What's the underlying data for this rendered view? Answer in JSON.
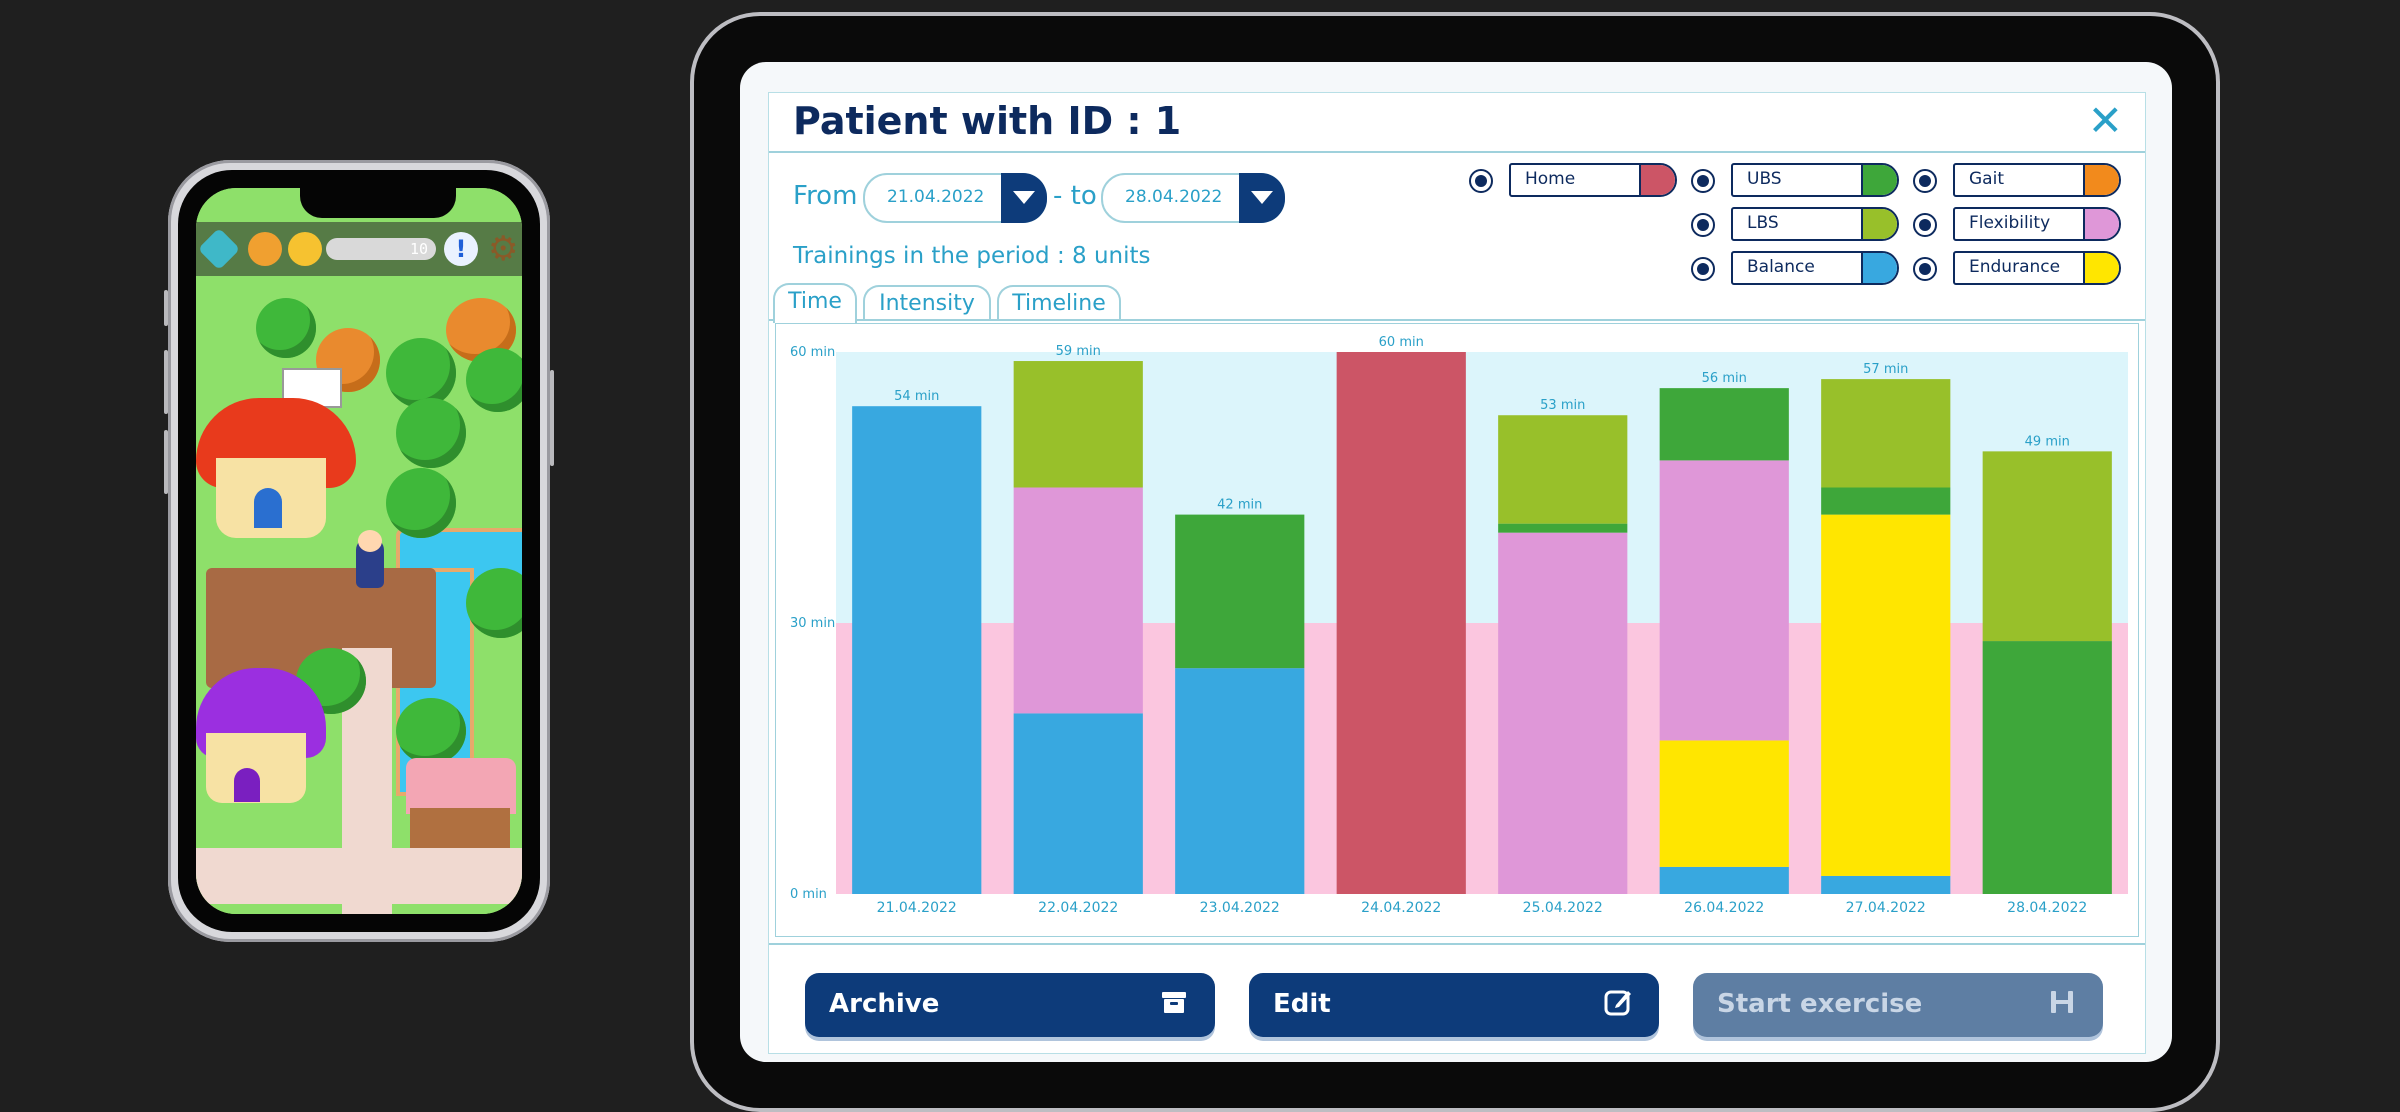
{
  "phone": {
    "hud": {
      "counter": "10",
      "alert_glyph": "!",
      "settings_glyph": "⚙"
    },
    "icons": [
      "map-icon",
      "coin-icon",
      "gold-coin-icon",
      "alert-icon",
      "gear-icon"
    ],
    "colors": {
      "grass": "#8ee06a",
      "water": "#3cc7f0",
      "path": "#f0d9d0",
      "red_house": "#e83a1c",
      "purple_house": "#9b2fe0"
    }
  },
  "patient": {
    "title": "Patient with ID : 1",
    "close_glyph": "✕",
    "from_label": "From",
    "to_label": "- to",
    "from_date": "21.04.2022",
    "to_date": "28.04.2022",
    "trainings": "Trainings in the period : 8 units",
    "tabs": [
      {
        "label": "Time",
        "active": true
      },
      {
        "label": "Intensity",
        "active": false
      },
      {
        "label": "Timeline",
        "active": false
      }
    ],
    "legend": [
      {
        "label": "Home",
        "color": "#cc5566"
      },
      {
        "label": "UBS",
        "color": "#3ea73a"
      },
      {
        "label": "Gait",
        "color": "#f28a1c"
      },
      {
        "label": "LBS",
        "color": "#98c02a"
      },
      {
        "label": "Flexibility",
        "color": "#df97d8"
      },
      {
        "label": "Balance",
        "color": "#38a8e0"
      },
      {
        "label": "Endurance",
        "color": "#ffe600"
      }
    ],
    "actions": {
      "archive": "Archive",
      "edit": "Edit",
      "start": "Start exercise"
    }
  },
  "chart_data": {
    "type": "bar",
    "stacked": true,
    "categories": [
      "21.04.2022",
      "22.04.2022",
      "23.04.2022",
      "24.04.2022",
      "25.04.2022",
      "26.04.2022",
      "27.04.2022",
      "28.04.2022"
    ],
    "ytick_labels": [
      "0 min",
      "30 min",
      "60 min"
    ],
    "yticks": [
      0,
      30,
      60
    ],
    "ylim": [
      0,
      60
    ],
    "total_labels": [
      "54 min",
      "59 min",
      "42 min",
      "60 min",
      "53 min",
      "56 min",
      "57 min",
      "49 min"
    ],
    "bands": [
      {
        "from": 0,
        "to": 30,
        "color": "#fbc6df"
      },
      {
        "from": 30,
        "to": 60,
        "color": "#dcf5fb"
      }
    ],
    "series": [
      {
        "name": "Balance",
        "color": "#38a8e0",
        "values": [
          54,
          20,
          25,
          0,
          0,
          3,
          2,
          0
        ]
      },
      {
        "name": "Endurance",
        "color": "#ffe600",
        "values": [
          0,
          0,
          0,
          0,
          0,
          14,
          40,
          0
        ]
      },
      {
        "name": "Flexibility",
        "color": "#df97d8",
        "values": [
          0,
          25,
          0,
          0,
          40,
          31,
          0,
          0
        ]
      },
      {
        "name": "UBS",
        "color": "#3ea73a",
        "values": [
          0,
          0,
          17,
          0,
          1,
          8,
          3,
          28
        ]
      },
      {
        "name": "LBS",
        "color": "#98c02a",
        "values": [
          0,
          14,
          0,
          0,
          12,
          0,
          12,
          21
        ]
      },
      {
        "name": "Home",
        "color": "#cc5566",
        "values": [
          0,
          0,
          0,
          60,
          0,
          0,
          0,
          0
        ]
      }
    ]
  }
}
